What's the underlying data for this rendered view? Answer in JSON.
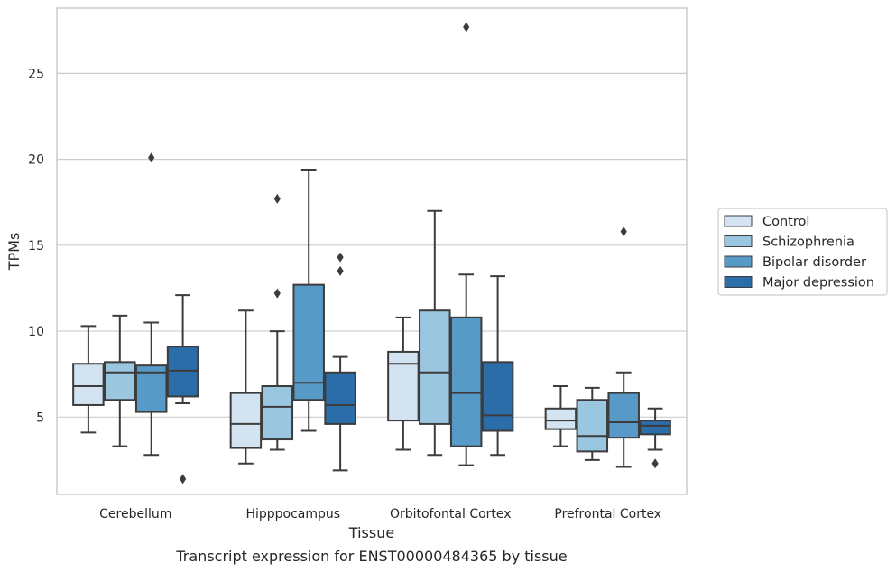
{
  "chart_data": {
    "type": "boxplot",
    "title": "Transcript expression for ENST00000484365 by tissue",
    "xlabel": "Tissue",
    "ylabel": "TPMs",
    "ylim": [
      0.5,
      28.8
    ],
    "yticks": [
      5,
      10,
      15,
      20,
      25
    ],
    "grid": "horizontal",
    "legend_position": "right",
    "categories": [
      "Cerebellum",
      "Hipppocampus",
      "Orbitofontal Cortex",
      "Prefrontal Cortex"
    ],
    "series": [
      {
        "name": "Control",
        "color": "#d4e3f1",
        "boxes": [
          {
            "min": 4.1,
            "q1": 5.7,
            "median": 6.8,
            "q3": 8.1,
            "max": 10.3,
            "outliers": []
          },
          {
            "min": 2.3,
            "q1": 3.2,
            "median": 4.6,
            "q3": 6.4,
            "max": 11.2,
            "outliers": []
          },
          {
            "min": 3.1,
            "q1": 4.8,
            "median": 8.1,
            "q3": 8.8,
            "max": 10.8,
            "outliers": []
          },
          {
            "min": 3.3,
            "q1": 4.3,
            "median": 4.8,
            "q3": 5.5,
            "max": 6.8,
            "outliers": []
          }
        ]
      },
      {
        "name": "Schizophrenia",
        "color": "#9ac6e0",
        "boxes": [
          {
            "min": 3.3,
            "q1": 6.0,
            "median": 7.6,
            "q3": 8.2,
            "max": 10.9,
            "outliers": []
          },
          {
            "min": 3.1,
            "q1": 3.7,
            "median": 5.6,
            "q3": 6.8,
            "max": 10.0,
            "outliers": [
              12.2,
              17.7
            ]
          },
          {
            "min": 2.8,
            "q1": 4.6,
            "median": 7.6,
            "q3": 11.2,
            "max": 17.0,
            "outliers": []
          },
          {
            "min": 2.5,
            "q1": 3.0,
            "median": 3.9,
            "q3": 6.0,
            "max": 6.7,
            "outliers": []
          }
        ]
      },
      {
        "name": "Bipolar disorder",
        "color": "#5799c7",
        "boxes": [
          {
            "min": 2.8,
            "q1": 5.3,
            "median": 7.6,
            "q3": 8.0,
            "max": 10.5,
            "outliers": [
              20.1
            ]
          },
          {
            "min": 4.2,
            "q1": 6.0,
            "median": 7.0,
            "q3": 12.7,
            "max": 19.4,
            "outliers": []
          },
          {
            "min": 2.2,
            "q1": 3.3,
            "median": 6.4,
            "q3": 10.8,
            "max": 13.3,
            "outliers": [
              27.7
            ]
          },
          {
            "min": 2.1,
            "q1": 3.8,
            "median": 4.7,
            "q3": 6.4,
            "max": 7.6,
            "outliers": [
              15.8
            ]
          }
        ]
      },
      {
        "name": "Major depression",
        "color": "#2b6da9",
        "boxes": [
          {
            "min": 5.8,
            "q1": 6.2,
            "median": 7.7,
            "q3": 9.1,
            "max": 12.1,
            "outliers": [
              1.4
            ]
          },
          {
            "min": 1.9,
            "q1": 4.6,
            "median": 5.7,
            "q3": 7.6,
            "max": 8.5,
            "outliers": [
              13.5,
              14.3
            ]
          },
          {
            "min": 2.8,
            "q1": 4.2,
            "median": 5.1,
            "q3": 8.2,
            "max": 13.2,
            "outliers": []
          },
          {
            "min": 3.1,
            "q1": 4.0,
            "median": 4.5,
            "q3": 4.8,
            "max": 5.5,
            "outliers": [
              2.3
            ]
          }
        ]
      }
    ]
  }
}
